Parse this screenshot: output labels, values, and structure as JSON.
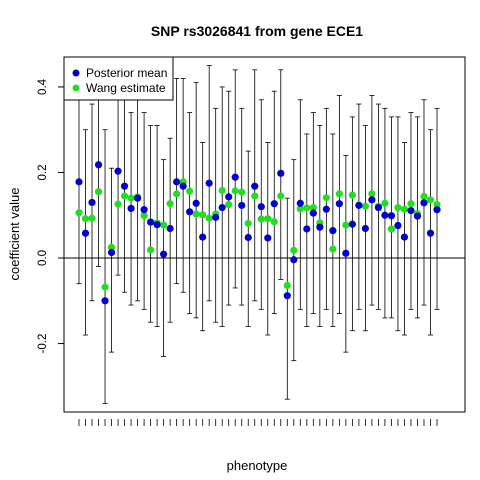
{
  "chart_data": {
    "type": "scatter",
    "title": "SNP rs3026841 from gene ECE1",
    "xlabel": "phenotype",
    "ylabel": "coefficient value",
    "ylim": [
      -0.36,
      0.47
    ],
    "y_ticks": [
      -0.2,
      0.0,
      0.2,
      0.4
    ],
    "y_tick_labels": [
      "-0.2",
      "0.0",
      "0.2",
      "0.4"
    ],
    "reference_line": 0,
    "grid": false,
    "legend_position": "top-left",
    "n_phenotypes": 56,
    "series": [
      {
        "name": "Posterior mean",
        "color": "#0000CC",
        "values": [
          0.178,
          0.058,
          0.13,
          0.218,
          -0.1,
          0.013,
          0.203,
          0.168,
          0.116,
          0.14,
          0.113,
          0.084,
          0.078,
          0.009,
          0.069,
          0.178,
          0.168,
          0.108,
          0.128,
          0.049,
          0.175,
          0.095,
          0.118,
          0.143,
          0.189,
          0.123,
          0.048,
          0.168,
          0.12,
          0.047,
          0.127,
          0.198,
          -0.088,
          -0.004,
          0.128,
          0.068,
          0.105,
          0.072,
          0.114,
          0.064,
          0.127,
          0.011,
          0.079,
          0.123,
          0.069,
          0.136,
          0.118,
          0.1,
          0.099,
          0.076,
          0.049,
          0.111,
          0.098,
          0.129,
          0.058,
          0.113
        ],
        "upper": [
          0.42,
          0.3,
          0.36,
          0.42,
          0.3,
          0.21,
          0.45,
          0.42,
          0.34,
          0.38,
          0.34,
          0.31,
          0.31,
          0.23,
          0.28,
          0.42,
          0.42,
          0.34,
          0.41,
          0.27,
          0.45,
          0.35,
          0.4,
          0.39,
          0.44,
          0.35,
          0.25,
          0.44,
          0.37,
          0.27,
          0.39,
          0.44,
          0.14,
          0.23,
          0.37,
          0.29,
          0.34,
          0.31,
          0.35,
          0.29,
          0.38,
          0.24,
          0.33,
          0.36,
          0.31,
          0.38,
          0.36,
          0.35,
          0.33,
          0.33,
          0.27,
          0.34,
          0.33,
          0.37,
          0.3,
          0.35
        ],
        "lower": [
          -0.06,
          -0.18,
          -0.1,
          -0.02,
          -0.34,
          -0.22,
          -0.04,
          -0.08,
          -0.11,
          -0.1,
          -0.12,
          -0.15,
          -0.16,
          -0.23,
          -0.15,
          -0.06,
          -0.08,
          -0.13,
          -0.14,
          -0.17,
          -0.1,
          -0.15,
          -0.16,
          -0.11,
          -0.07,
          -0.11,
          -0.16,
          -0.1,
          -0.12,
          -0.18,
          -0.13,
          -0.05,
          -0.33,
          -0.24,
          -0.12,
          -0.16,
          -0.13,
          -0.16,
          -0.12,
          -0.16,
          -0.13,
          -0.22,
          -0.17,
          -0.12,
          -0.17,
          -0.11,
          -0.12,
          -0.14,
          -0.14,
          -0.17,
          -0.18,
          -0.12,
          -0.14,
          -0.11,
          -0.18,
          -0.12
        ]
      },
      {
        "name": "Wang estimate",
        "color": "#22DD22",
        "values": [
          0.106,
          0.092,
          0.093,
          0.155,
          -0.068,
          0.025,
          0.126,
          0.145,
          0.14,
          0.143,
          0.099,
          0.019,
          0.082,
          0.077,
          0.127,
          0.15,
          0.178,
          0.156,
          0.103,
          0.101,
          0.093,
          0.103,
          0.158,
          0.125,
          0.157,
          0.154,
          0.081,
          0.145,
          0.091,
          0.092,
          0.085,
          0.145,
          -0.064,
          0.018,
          0.115,
          0.117,
          0.118,
          0.082,
          0.141,
          0.021,
          0.15,
          0.077,
          0.147,
          0.124,
          0.121,
          0.15,
          0.121,
          0.128,
          0.068,
          0.118,
          0.114,
          0.127,
          0.104,
          0.144,
          0.136,
          0.125
        ]
      }
    ]
  }
}
